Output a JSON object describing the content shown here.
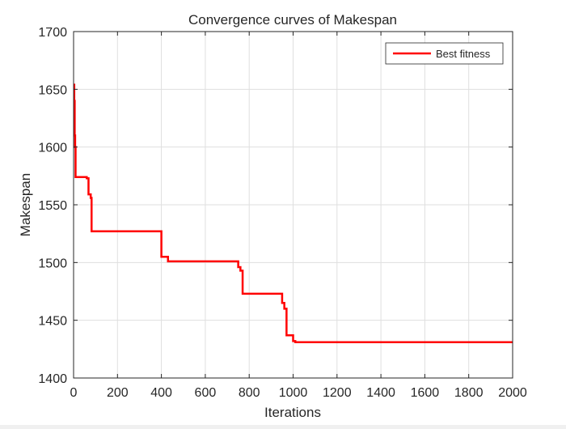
{
  "chart_data": {
    "type": "line",
    "title": "Convergence curves of Makespan",
    "xlabel": "Iterations",
    "ylabel": "Makespan",
    "xlim": [
      0,
      2000
    ],
    "ylim": [
      1400,
      1700
    ],
    "xticks": [
      0,
      200,
      400,
      600,
      800,
      1000,
      1200,
      1400,
      1600,
      1800,
      2000
    ],
    "yticks": [
      1400,
      1450,
      1500,
      1550,
      1600,
      1650,
      1700
    ],
    "xtick_labels": [
      "0",
      "200",
      "400",
      "600",
      "800",
      "1000",
      "1200",
      "1400",
      "1600",
      "1800",
      "2000"
    ],
    "ytick_labels": [
      "1400",
      "1450",
      "1500",
      "1550",
      "1600",
      "1650",
      "1700"
    ],
    "grid": true,
    "legend_position": "top-right",
    "series": [
      {
        "name": "Best fitness",
        "color": "#ff0000",
        "step": true,
        "x": [
          0,
          3,
          5,
          7,
          9,
          60,
          68,
          78,
          82,
          400,
          430,
          750,
          760,
          770,
          950,
          960,
          970,
          980,
          1000,
          1010,
          2000
        ],
        "y": [
          1654,
          1640,
          1610,
          1600,
          1574,
          1573,
          1559,
          1556,
          1527,
          1505,
          1501,
          1496,
          1493,
          1473,
          1465,
          1460,
          1437,
          1437,
          1432,
          1431,
          1431
        ]
      }
    ]
  }
}
